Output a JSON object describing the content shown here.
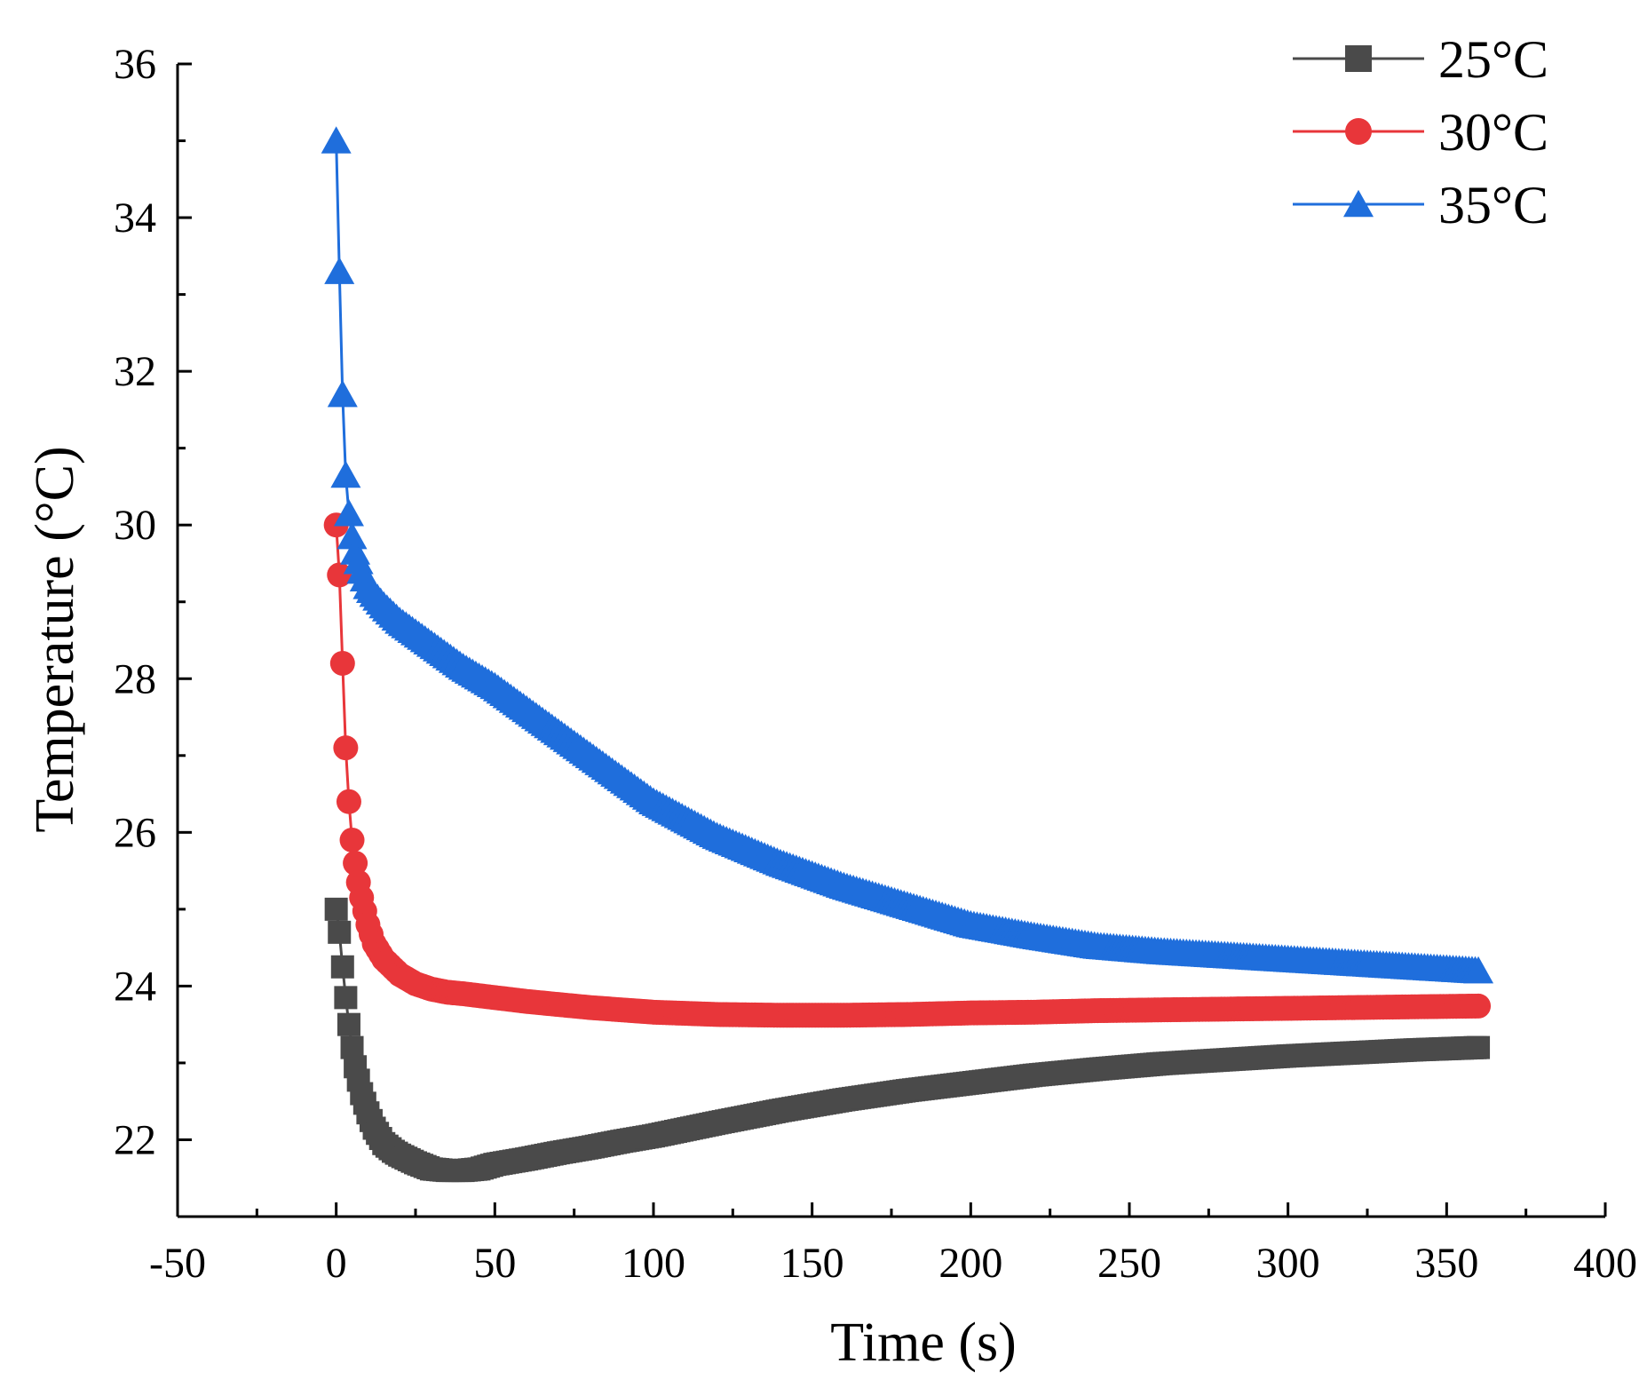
{
  "chart_data": {
    "type": "line",
    "title": "",
    "xlabel": "Time (s)",
    "ylabel": "Temperature (°C)",
    "xlim": [
      -50,
      400
    ],
    "ylim": [
      21,
      36
    ],
    "xticks": [
      -50,
      0,
      50,
      100,
      150,
      200,
      250,
      300,
      350,
      400
    ],
    "yticks": [
      22,
      24,
      26,
      28,
      30,
      32,
      34,
      36
    ],
    "legend_position": "top-right",
    "series": [
      {
        "name": "25°C",
        "color": "#4a4a4a",
        "marker": "square",
        "x": [
          0,
          1,
          2,
          3,
          4,
          5,
          6,
          8,
          10,
          12,
          15,
          18,
          20,
          25,
          30,
          35,
          40,
          45,
          50,
          60,
          70,
          80,
          90,
          100,
          120,
          140,
          160,
          180,
          200,
          220,
          240,
          260,
          280,
          300,
          320,
          340,
          360
        ],
        "y": [
          25.0,
          24.7,
          24.25,
          23.85,
          23.5,
          23.2,
          22.95,
          22.6,
          22.35,
          22.15,
          21.95,
          21.85,
          21.8,
          21.7,
          21.62,
          21.6,
          21.6,
          21.62,
          21.68,
          21.75,
          21.83,
          21.9,
          21.98,
          22.05,
          22.22,
          22.38,
          22.52,
          22.64,
          22.74,
          22.84,
          22.92,
          22.99,
          23.04,
          23.09,
          23.13,
          23.17,
          23.2
        ]
      },
      {
        "name": "30°C",
        "color": "#e8363a",
        "marker": "circle",
        "x": [
          0,
          1,
          2,
          3,
          4,
          5,
          6,
          7,
          8,
          10,
          12,
          15,
          20,
          25,
          30,
          35,
          40,
          50,
          60,
          80,
          100,
          120,
          140,
          160,
          180,
          200,
          220,
          240,
          260,
          280,
          300,
          320,
          340,
          360
        ],
        "y": [
          30.0,
          29.35,
          28.2,
          27.1,
          26.4,
          25.9,
          25.6,
          25.35,
          25.15,
          24.8,
          24.55,
          24.35,
          24.15,
          24.03,
          23.96,
          23.92,
          23.9,
          23.85,
          23.8,
          23.72,
          23.66,
          23.63,
          23.62,
          23.62,
          23.63,
          23.65,
          23.66,
          23.68,
          23.69,
          23.7,
          23.71,
          23.72,
          23.73,
          23.74
        ]
      },
      {
        "name": "35°C",
        "color": "#1f6edc",
        "marker": "triangle",
        "x": [
          0,
          1,
          2,
          3,
          4,
          5,
          6,
          8,
          10,
          15,
          20,
          30,
          40,
          50,
          60,
          70,
          80,
          90,
          100,
          120,
          140,
          160,
          180,
          200,
          220,
          240,
          260,
          280,
          300,
          320,
          340,
          360
        ],
        "y": [
          35.0,
          33.3,
          31.7,
          30.65,
          30.15,
          29.85,
          29.65,
          29.4,
          29.2,
          28.95,
          28.75,
          28.45,
          28.15,
          27.9,
          27.6,
          27.3,
          27.0,
          26.7,
          26.4,
          25.95,
          25.6,
          25.3,
          25.05,
          24.8,
          24.65,
          24.52,
          24.45,
          24.4,
          24.35,
          24.3,
          24.25,
          24.2
        ]
      }
    ]
  }
}
